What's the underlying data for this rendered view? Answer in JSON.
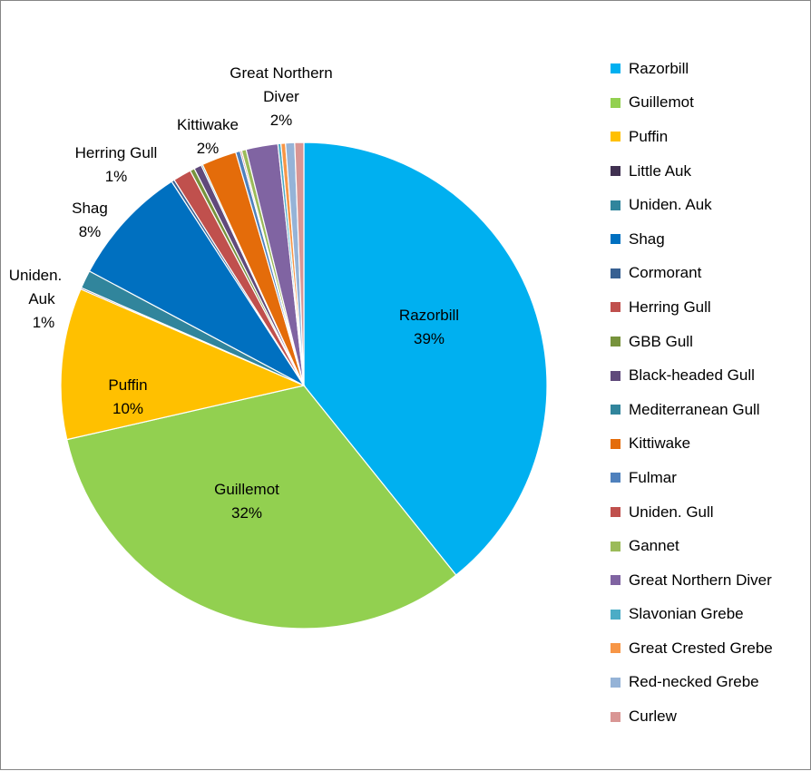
{
  "chart_data": {
    "type": "pie",
    "title": "",
    "legend_position": "right",
    "slices": [
      {
        "name": "Razorbill",
        "value": 39,
        "color": "#00B0F0",
        "label": "Razorbill",
        "percent_label": "39%"
      },
      {
        "name": "Guillemot",
        "value": 32,
        "color": "#92D050",
        "label": "Guillemot",
        "percent_label": "32%"
      },
      {
        "name": "Puffin",
        "value": 10,
        "color": "#FFC000",
        "label": "Puffin",
        "percent_label": "10%"
      },
      {
        "name": "Little Auk",
        "value": 0.1,
        "color": "#403151",
        "label": "",
        "percent_label": ""
      },
      {
        "name": "Uniden. Auk",
        "value": 1.2,
        "color": "#31859C",
        "label": "Uniden. Auk",
        "percent_label": "1%"
      },
      {
        "name": "Shag",
        "value": 8,
        "color": "#0070C0",
        "label": "Shag",
        "percent_label": "8%"
      },
      {
        "name": "Cormorant",
        "value": 0.2,
        "color": "#376092",
        "label": "",
        "percent_label": ""
      },
      {
        "name": "Herring Gull",
        "value": 1.2,
        "color": "#C0504D",
        "label": "Herring Gull",
        "percent_label": "1%"
      },
      {
        "name": "GBB Gull",
        "value": 0.3,
        "color": "#77933C",
        "label": "",
        "percent_label": ""
      },
      {
        "name": "Black-headed Gull",
        "value": 0.5,
        "color": "#604A7B",
        "label": "",
        "percent_label": ""
      },
      {
        "name": "Mediterranean Gull",
        "value": 0.1,
        "color": "#31859C",
        "label": "",
        "percent_label": ""
      },
      {
        "name": "Kittiwake",
        "value": 2.3,
        "color": "#E46C0A",
        "label": "Kittiwake",
        "percent_label": "2%"
      },
      {
        "name": "Fulmar",
        "value": 0.3,
        "color": "#4F81BD",
        "label": "",
        "percent_label": ""
      },
      {
        "name": "Uniden. Gull",
        "value": 0.1,
        "color": "#C0504D",
        "label": "",
        "percent_label": ""
      },
      {
        "name": "Gannet",
        "value": 0.3,
        "color": "#9BBB59",
        "label": "",
        "percent_label": ""
      },
      {
        "name": "Great Northern Diver",
        "value": 2.1,
        "color": "#8064A2",
        "label": "Great Northern Diver",
        "percent_label": "2%"
      },
      {
        "name": "Slavonian Grebe",
        "value": 0.2,
        "color": "#4BACC6",
        "label": "",
        "percent_label": ""
      },
      {
        "name": "Great Crested Grebe",
        "value": 0.3,
        "color": "#F79646",
        "label": "",
        "percent_label": ""
      },
      {
        "name": "Red-necked Grebe",
        "value": 0.6,
        "color": "#95B3D7",
        "label": "",
        "percent_label": ""
      },
      {
        "name": "Curlew",
        "value": 0.6,
        "color": "#D99694",
        "label": "",
        "percent_label": ""
      }
    ]
  }
}
